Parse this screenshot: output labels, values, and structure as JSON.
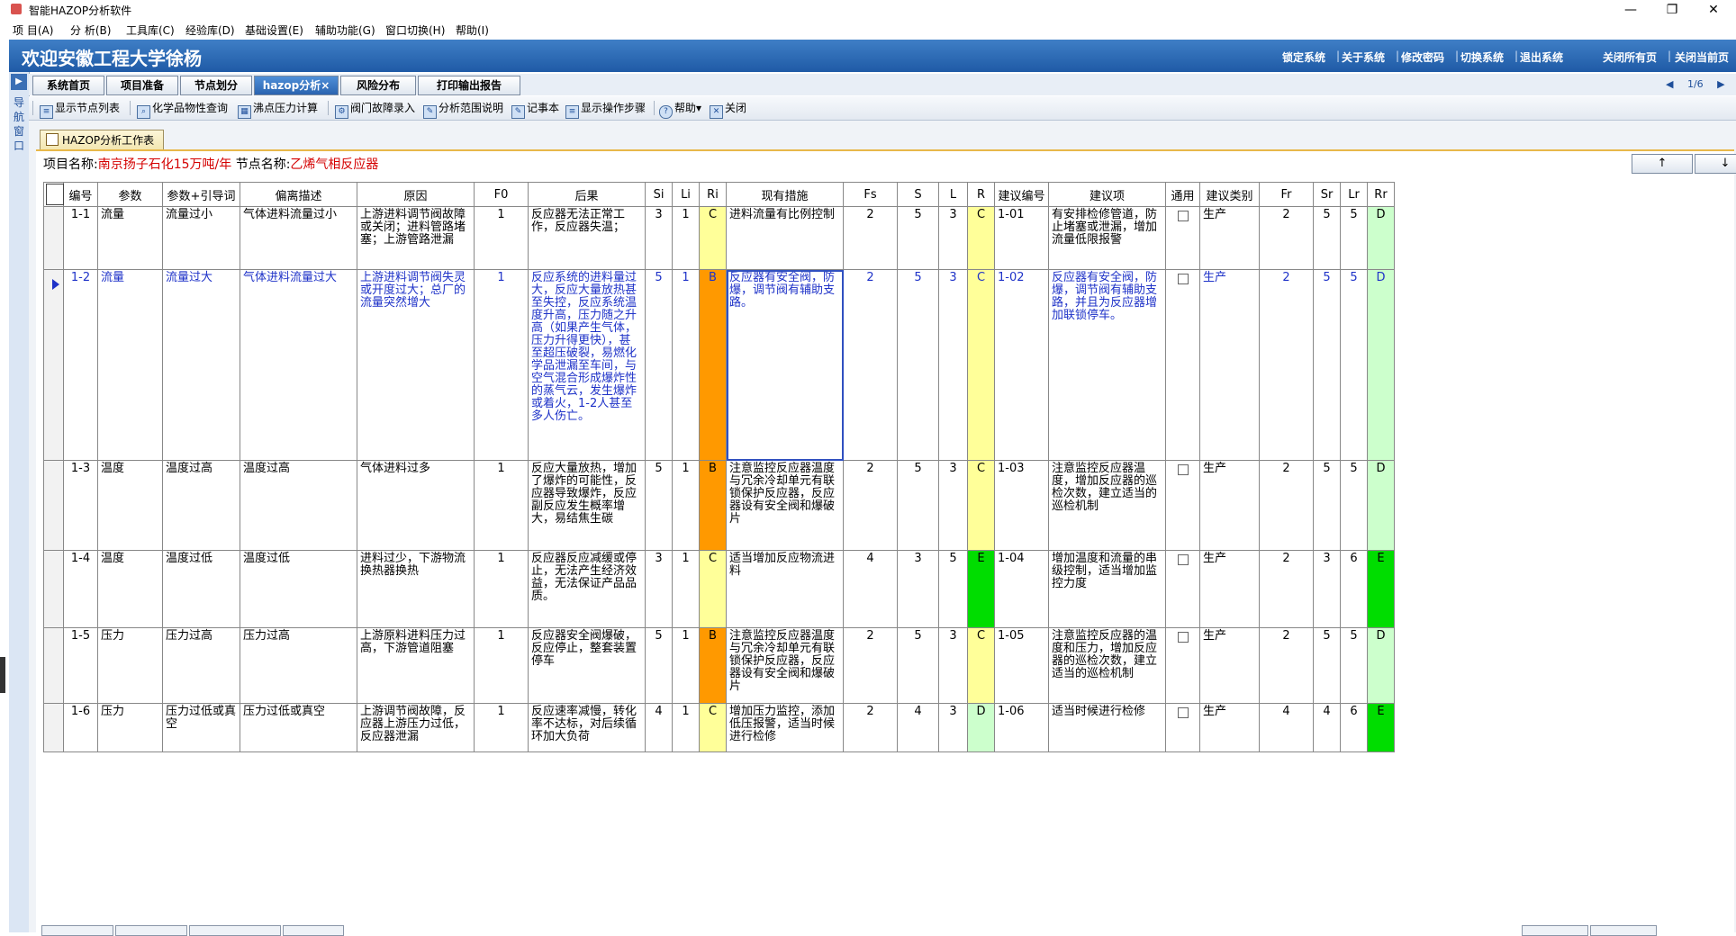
{
  "window": {
    "title": "智能HAZOP分析软件",
    "minimize": "—",
    "restore": "❐",
    "close": "✕"
  },
  "menu": [
    "项  目(A)",
    "分  析(B)",
    "工具库(C)",
    "经验库(D)",
    "基础设置(E)",
    "辅助功能(G)",
    "窗口切换(H)",
    "帮助(I)"
  ],
  "banner": {
    "welcome": "欢迎安徽工程大学徐杨",
    "links": [
      "锁定系统",
      "关于系统",
      "修改密码",
      "切换系统",
      "退出系统"
    ],
    "right_links": [
      "关闭所有页",
      "关闭当前页"
    ]
  },
  "leftnav": {
    "label": "导航窗口"
  },
  "main_tabs": [
    "系统首页",
    "项目准备",
    "节点划分",
    "hazop分析×",
    "风险分布",
    "打印输出报告"
  ],
  "pager": {
    "prev": "◀",
    "text": "1/6",
    "next": "▶"
  },
  "toolbar": [
    "显示节点列表",
    "化学品物性查询",
    "沸点压力计算",
    "阀门故障录入",
    "分析范围说明",
    "记事本",
    "显示操作步骤",
    "帮助▾",
    "关闭"
  ],
  "doc_tab": "HAZOP分析工作表",
  "project": {
    "project_label": "项目名称:",
    "project_name": "南京扬子石化15万吨/年",
    "node_label": "节点名称:",
    "node_name": "乙烯气相反应器"
  },
  "nav_buttons": {
    "up": "↑",
    "down": "↓"
  },
  "colors": {
    "yellow": "#ffff99",
    "orange": "#ff9900",
    "green": "#00dd00",
    "lightgreen": "#ccffcc",
    "lightyellow": "#ffff99",
    "selected_text": "#1e32c8",
    "banner": "#2b64b0"
  },
  "grid": {
    "columns": [
      "编号",
      "参数",
      "参数+引导词",
      "偏离描述",
      "原因",
      "F0",
      "后果",
      "Si",
      "Li",
      "Ri",
      "现有措施",
      "Fs",
      "S",
      "L",
      "R",
      "建议编号",
      "建议项",
      "通用",
      "建议类别",
      "Fr",
      "Sr",
      "Lr",
      "Rr"
    ],
    "rows": [
      {
        "id": "1-1",
        "param": "流量",
        "guide": "流量过小",
        "dev": "气体进料流量过小",
        "cause": "上游进料调节阀故障或关闭；进料管路堵塞；上游管路泄漏",
        "f0": "1",
        "cons": "反应器无法正常工作，反应器失温；",
        "si": "3",
        "li": "1",
        "ri": "C",
        "ri_color": "lightyellow",
        "measures": "进料流量有比例控制",
        "fs": "2",
        "s": "5",
        "l": "3",
        "r": "C",
        "r_color": "lightyellow",
        "sid": "1-01",
        "sug": "有安排检修管道，防止堵塞或泄漏，增加流量低限报警",
        "type": "生产",
        "fr": "2",
        "sr": "5",
        "lr": "5",
        "rr": "D",
        "rr_color": "lightgreen"
      },
      {
        "id": "1-2",
        "param": "流量",
        "guide": "流量过大",
        "dev": "气体进料流量过大",
        "cause": "上游进料调节阀失灵或开度过大；总厂的流量突然增大",
        "f0": "1",
        "cons": "反应系统的进料量过大，反应大量放热甚至失控，反应系统温度升高，压力随之升高（如果产生气体，压力升得更快），甚至超压破裂，易燃化学品泄漏至车间，与空气混合形成爆炸性的蒸气云，发生爆炸或着火，1-2人甚至多人伤亡。",
        "si": "5",
        "li": "1",
        "ri": "B",
        "ri_color": "orange",
        "measures": "反应器有安全阀，防爆，调节阀有辅助支路。",
        "fs": "2",
        "s": "5",
        "l": "3",
        "r": "C",
        "r_color": "lightyellow",
        "sid": "1-02",
        "sug": "反应器有安全阀，防爆，调节阀有辅助支路，并且为反应器增加联锁停车。",
        "type": "生产",
        "fr": "2",
        "sr": "5",
        "lr": "5",
        "rr": "D",
        "rr_color": "lightgreen"
      },
      {
        "id": "1-3",
        "param": "温度",
        "guide": "温度过高",
        "dev": "温度过高",
        "cause": "气体进料过多",
        "f0": "1",
        "cons": "反应大量放热，增加了爆炸的可能性，反应器导致爆炸，反应副反应发生概率增大，易结焦生碳",
        "si": "5",
        "li": "1",
        "ri": "B",
        "ri_color": "orange",
        "measures": "注意监控反应器温度与冗余冷却单元有联锁保护反应器，反应器设有安全阀和爆破片",
        "fs": "2",
        "s": "5",
        "l": "3",
        "r": "C",
        "r_color": "lightyellow",
        "sid": "1-03",
        "sug": "注意监控反应器温度，增加反应器的巡检次数，建立适当的巡检机制",
        "type": "生产",
        "fr": "2",
        "sr": "5",
        "lr": "5",
        "rr": "D",
        "rr_color": "lightgreen"
      },
      {
        "id": "1-4",
        "param": "温度",
        "guide": "温度过低",
        "dev": "温度过低",
        "cause": "进料过少，下游物流换热器换热",
        "f0": "1",
        "cons": "反应器反应减缓或停止，无法产生经济效益，无法保证产品品质。",
        "si": "3",
        "li": "1",
        "ri": "C",
        "ri_color": "lightyellow",
        "measures": "适当增加反应物流进料",
        "fs": "4",
        "s": "3",
        "l": "5",
        "r": "E",
        "r_color": "green",
        "sid": "1-04",
        "sug": "增加温度和流量的串级控制，适当增加监控力度",
        "type": "生产",
        "fr": "2",
        "sr": "3",
        "lr": "6",
        "rr": "E",
        "rr_color": "green"
      },
      {
        "id": "1-5",
        "param": "压力",
        "guide": "压力过高",
        "dev": "压力过高",
        "cause": "上游原料进料压力过高，下游管道阻塞",
        "f0": "1",
        "cons": "反应器安全阀爆破，反应停止，整套装置停车",
        "si": "5",
        "li": "1",
        "ri": "B",
        "ri_color": "orange",
        "measures": "注意监控反应器温度与冗余冷却单元有联锁保护反应器，反应器设有安全阀和爆破片",
        "fs": "2",
        "s": "5",
        "l": "3",
        "r": "C",
        "r_color": "lightyellow",
        "sid": "1-05",
        "sug": "注意监控反应器的温度和压力，增加反应器的巡检次数，建立适当的巡检机制",
        "type": "生产",
        "fr": "2",
        "sr": "5",
        "lr": "5",
        "rr": "D",
        "rr_color": "lightgreen"
      },
      {
        "id": "1-6",
        "param": "压力",
        "guide": "压力过低或真空",
        "dev": "压力过低或真空",
        "cause": "上游调节阀故障，反应器上游压力过低，反应器泄漏",
        "f0": "1",
        "cons": "反应速率减慢，转化率不达标，对后续循环加大负荷",
        "si": "4",
        "li": "1",
        "ri": "C",
        "ri_color": "lightyellow",
        "measures": "增加压力监控，添加低压报警，适当时候进行检修",
        "fs": "2",
        "s": "4",
        "l": "3",
        "r": "D",
        "r_color": "lightgreen",
        "sid": "1-06",
        "sug": "适当时候进行检修",
        "type": "生产",
        "fr": "4",
        "sr": "4",
        "lr": "6",
        "rr": "E",
        "rr_color": "green"
      }
    ]
  }
}
